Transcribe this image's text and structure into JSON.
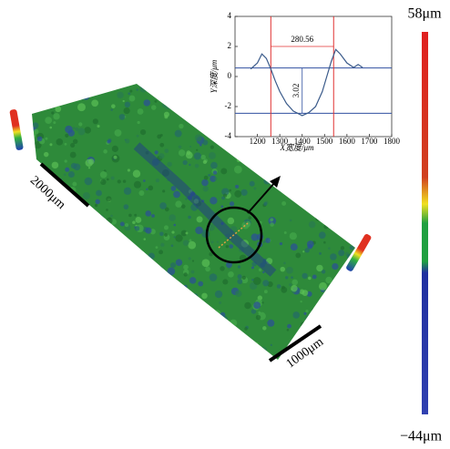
{
  "chart_data": {
    "type": "line",
    "xlabel": "X宽度/μm",
    "ylabel": "Y深度/μm",
    "x": [
      1170,
      1200,
      1220,
      1240,
      1260,
      1280,
      1300,
      1330,
      1360,
      1400,
      1430,
      1460,
      1490,
      1510,
      1530,
      1550,
      1570,
      1600,
      1630,
      1650,
      1670
    ],
    "series": [
      {
        "color": "#3a5a8a",
        "values": [
          0.5,
          0.9,
          1.5,
          1.2,
          0.5,
          -0.3,
          -1.0,
          -1.8,
          -2.3,
          -2.6,
          -2.4,
          -2.0,
          -1.0,
          0.0,
          1.0,
          1.8,
          1.5,
          0.9,
          0.6,
          0.8,
          0.6
        ]
      }
    ],
    "xlim": [
      1100,
      1800
    ],
    "xticks": [
      1200,
      1300,
      1400,
      1500,
      1600,
      1700,
      1800
    ],
    "ylim": [
      -4,
      4
    ],
    "yticks": [
      -4,
      -2,
      0,
      2,
      4
    ],
    "vlines": [
      1260,
      1540.56
    ],
    "vline_color": "#e03030",
    "hlines": [
      0.57,
      -2.45
    ],
    "hline_color": "#3050a0",
    "width_label": "280.56",
    "depth_label": "3.02"
  },
  "scale_bars": [
    "2000μm",
    "1000μm"
  ],
  "colorbar": {
    "max_label": "58μm",
    "min_label": "−44μm"
  }
}
